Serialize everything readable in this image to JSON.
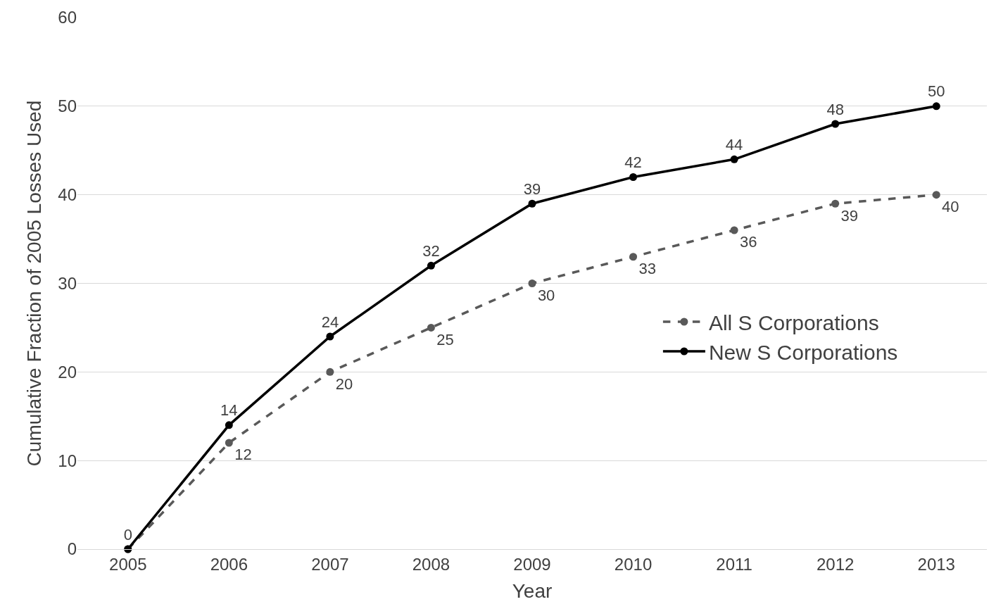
{
  "chart_data": {
    "type": "line",
    "xlabel": "Year",
    "ylabel": "Cumulative Fraction of 2005 Losses Used",
    "categories": [
      "2005",
      "2006",
      "2007",
      "2008",
      "2009",
      "2010",
      "2011",
      "2012",
      "2013"
    ],
    "series": [
      {
        "name": "All S Corporations",
        "color": "#595959",
        "line_style": "dashed",
        "values": [
          0,
          12,
          20,
          25,
          30,
          33,
          36,
          39,
          40
        ],
        "value_labels": [
          null,
          "12",
          "20",
          "25",
          "30",
          "33",
          "36",
          "39",
          "40"
        ]
      },
      {
        "name": "New S Corporations",
        "color": "#000000",
        "line_style": "solid",
        "values": [
          0,
          14,
          24,
          32,
          39,
          42,
          44,
          48,
          50
        ],
        "value_labels": [
          "0",
          "14",
          "24",
          "32",
          "39",
          "42",
          "44",
          "48",
          "50"
        ]
      }
    ],
    "ylim": [
      0,
      60
    ],
    "yticks": [
      0,
      10,
      20,
      30,
      40,
      50,
      60
    ],
    "grid": "y",
    "legend": "right",
    "marker": "circle"
  }
}
